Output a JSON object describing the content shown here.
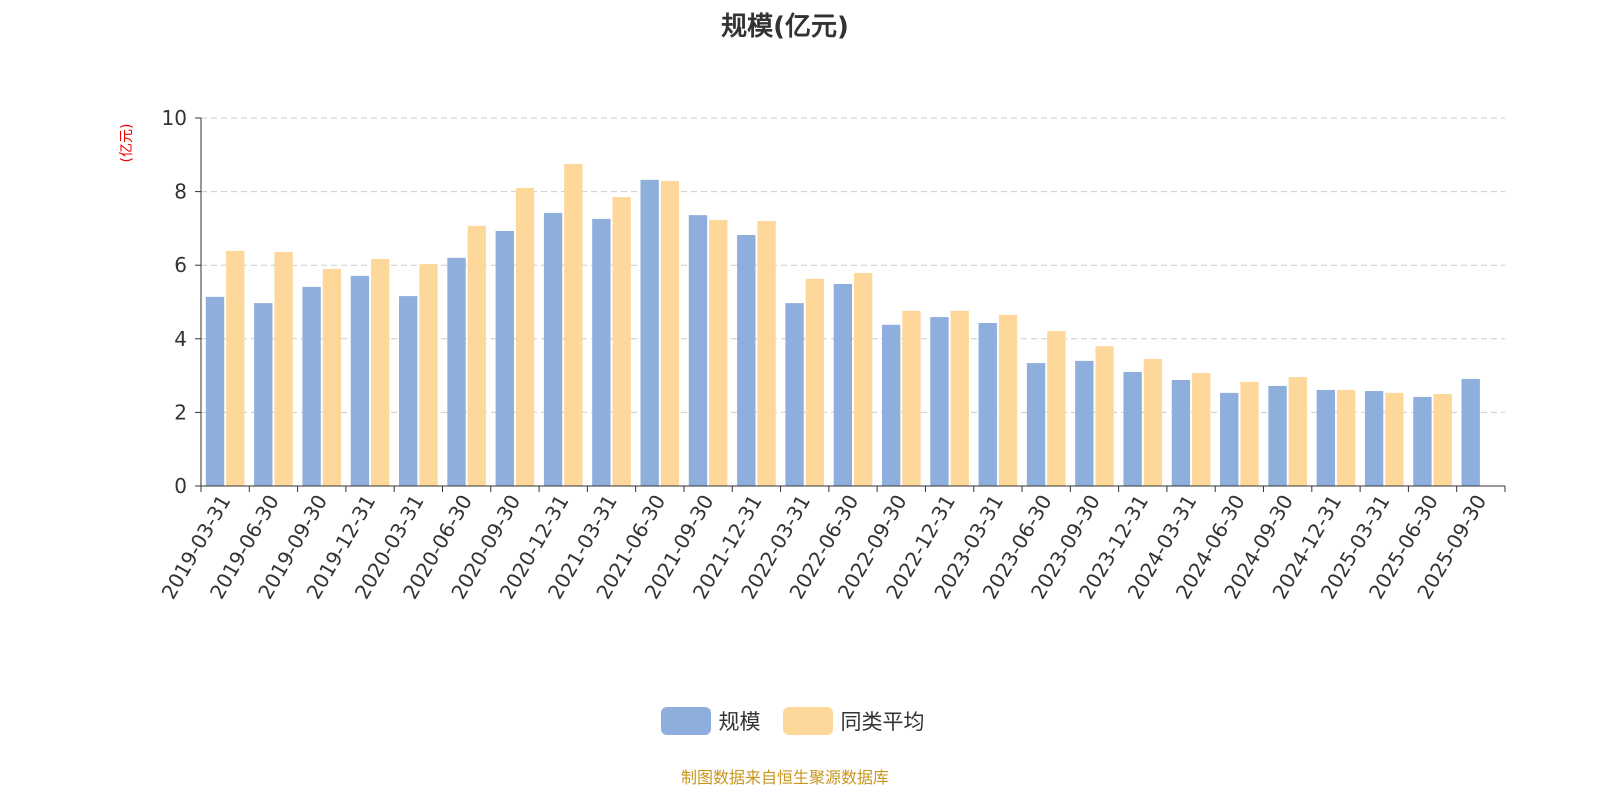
{
  "chart_data": {
    "type": "bar",
    "title": "规模(亿元)",
    "ylabel": "(亿元)",
    "ylim": [
      0,
      10
    ],
    "yticks": [
      0,
      2,
      4,
      6,
      8,
      10
    ],
    "grid": true,
    "legend_position": "bottom",
    "categories": [
      "2019-03-31",
      "2019-06-30",
      "2019-09-30",
      "2019-12-31",
      "2020-03-31",
      "2020-06-30",
      "2020-09-30",
      "2020-12-31",
      "2021-03-31",
      "2021-06-30",
      "2021-09-30",
      "2021-12-31",
      "2022-03-31",
      "2022-06-30",
      "2022-09-30",
      "2022-12-31",
      "2023-03-31",
      "2023-06-30",
      "2023-09-30",
      "2023-12-31",
      "2024-03-31",
      "2024-06-30",
      "2024-09-30",
      "2024-12-31",
      "2025-03-31",
      "2025-06-30",
      "2025-09-30"
    ],
    "series": [
      {
        "name": "规模",
        "color": "#8eaedb",
        "values": [
          5.14,
          4.97,
          5.41,
          5.71,
          5.16,
          6.2,
          6.93,
          7.42,
          7.26,
          8.32,
          7.36,
          6.82,
          4.97,
          5.49,
          4.38,
          4.59,
          4.43,
          3.34,
          3.4,
          3.1,
          2.88,
          2.53,
          2.72,
          2.61,
          2.58,
          2.42,
          2.91
        ]
      },
      {
        "name": "同类平均",
        "color": "#fdd89a",
        "values": [
          6.39,
          6.36,
          5.9,
          6.17,
          6.03,
          7.07,
          8.1,
          8.75,
          7.85,
          8.29,
          7.23,
          7.2,
          5.63,
          5.79,
          4.76,
          4.76,
          4.65,
          4.21,
          3.8,
          3.45,
          3.07,
          2.83,
          2.96,
          2.61,
          2.53,
          2.5,
          null
        ]
      }
    ]
  },
  "footer": "制图数据来自恒生聚源数据库"
}
